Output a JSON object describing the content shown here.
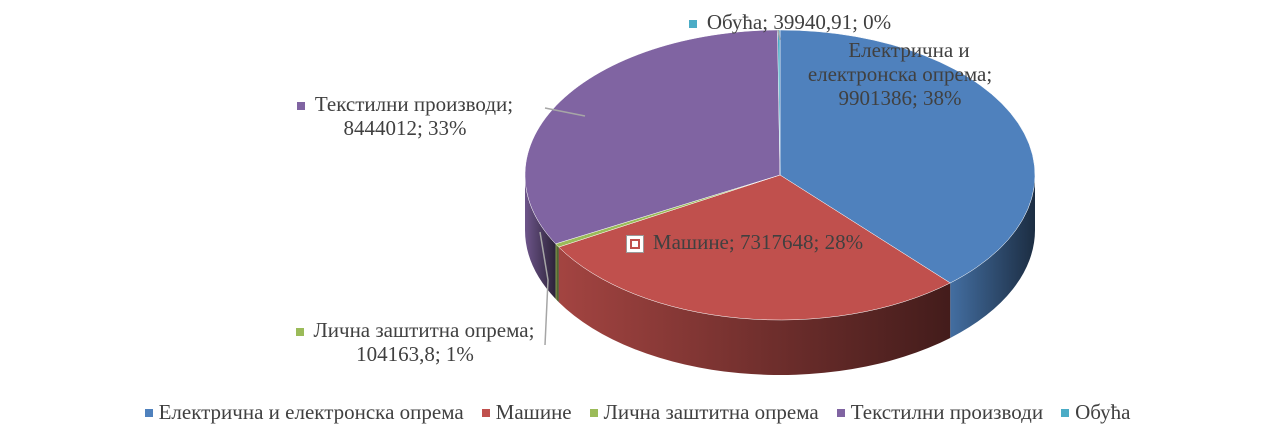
{
  "chart_data": {
    "type": "pie",
    "categories": [
      "Електрична и електронска опрема",
      "Машине",
      "Лична заштитна опрема",
      "Текстилни производи",
      "Обућа"
    ],
    "values": [
      9901386,
      7317648,
      104163.8,
      8444012,
      39940.91
    ],
    "value_labels": [
      "9901386",
      "7317648",
      "104163,8",
      "8444012",
      "39940,91"
    ],
    "percentages": [
      38,
      28,
      1,
      33,
      0
    ],
    "percentage_labels": [
      "38%",
      "28%",
      "1%",
      "33%",
      "0%"
    ],
    "label_separator": "; ",
    "colors": [
      "#4f81bd",
      "#c0504d",
      "#9bbb59",
      "#8064a2",
      "#4bacc6"
    ],
    "legend": "bottom"
  }
}
